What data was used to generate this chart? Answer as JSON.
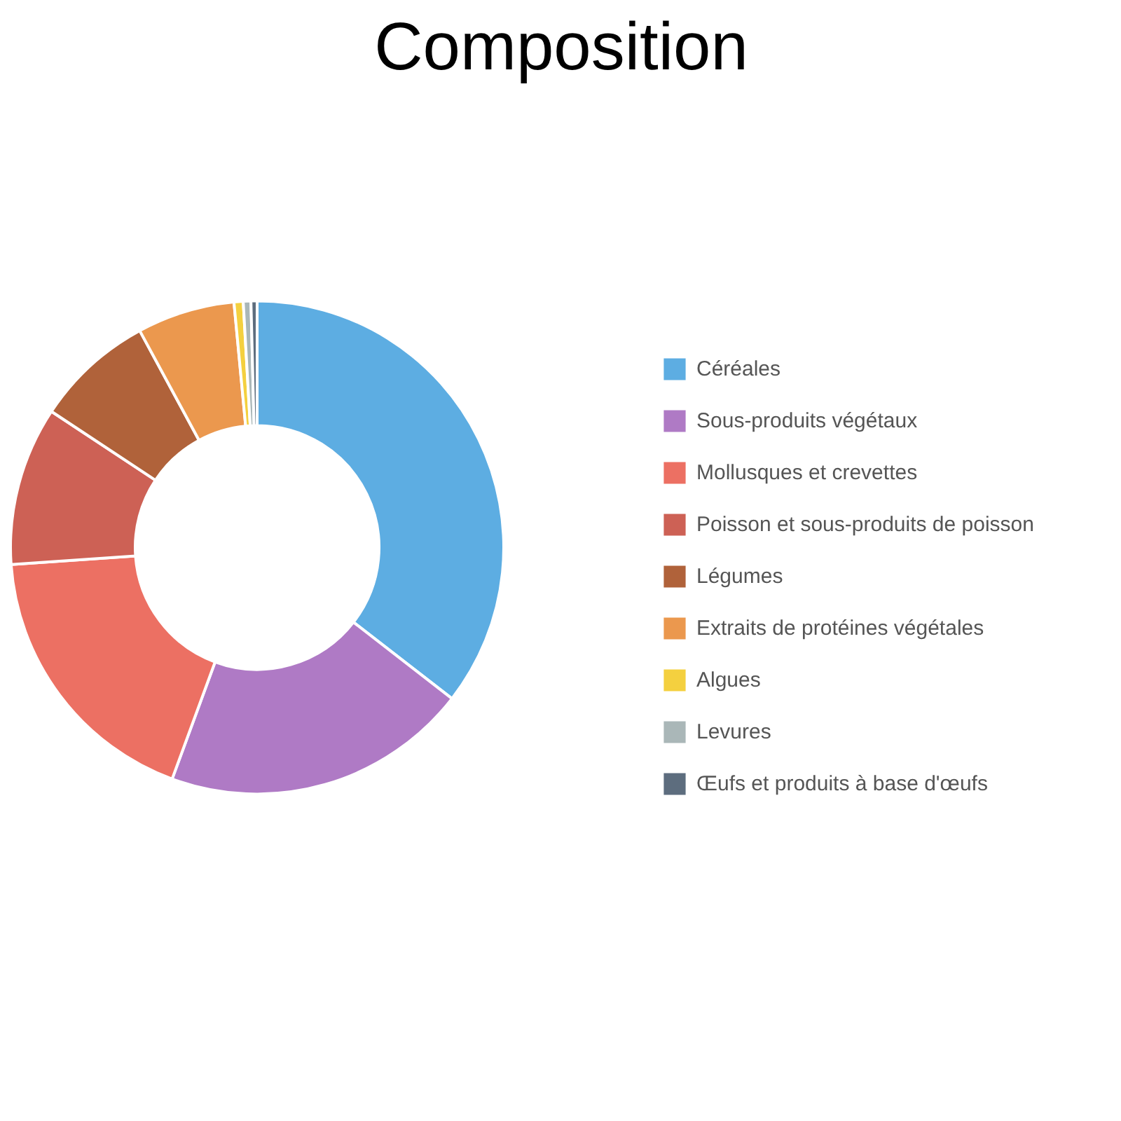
{
  "chart_data": {
    "type": "donut",
    "title": "Composition",
    "categories": [
      "Céréales",
      "Sous-produits végétaux",
      "Mollusques et crevettes",
      "Poisson et sous-produits de poisson",
      "Légumes",
      "Extraits de protéines végétales",
      "Algues",
      "Levures",
      "Œufs et produits à base d'œufs"
    ],
    "values": [
      35.5,
      20.1,
      18.3,
      10.4,
      7.8,
      6.4,
      0.6,
      0.5,
      0.4
    ],
    "colors": [
      "#5dade2",
      "#af7ac5",
      "#ec7063",
      "#cd6155",
      "#b0623a",
      "#eb984e",
      "#f4d03f",
      "#aab7b8",
      "#5d6d7e"
    ],
    "legend": "right"
  }
}
